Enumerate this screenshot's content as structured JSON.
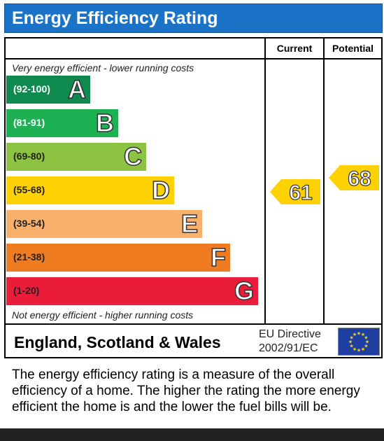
{
  "header": {
    "title": "Energy Efficiency Rating",
    "color": "#1a73c6"
  },
  "columns": {
    "current": "Current",
    "potential": "Potential"
  },
  "notes": {
    "top": "Very energy efficient - lower running costs",
    "bottom": "Not energy efficient - higher running costs"
  },
  "chart_data": {
    "type": "bar",
    "bands": [
      {
        "letter": "A",
        "range": "(92-100)",
        "color": "#0f8a4f",
        "text_color": "#ffffff"
      },
      {
        "letter": "B",
        "range": "(81-91)",
        "color": "#1db154",
        "text_color": "#ffffff"
      },
      {
        "letter": "C",
        "range": "(69-80)",
        "color": "#8cc341",
        "text_color": "#222222"
      },
      {
        "letter": "D",
        "range": "(55-68)",
        "color": "#fed102",
        "text_color": "#222222"
      },
      {
        "letter": "E",
        "range": "(39-54)",
        "color": "#f8b06b",
        "text_color": "#222222"
      },
      {
        "letter": "F",
        "range": "(21-38)",
        "color": "#f07c22",
        "text_color": "#222222"
      },
      {
        "letter": "G",
        "range": "(1-20)",
        "color": "#ea1c3a",
        "text_color": "#222222"
      }
    ],
    "current": {
      "value": 61,
      "label": "61",
      "color": "#fed102"
    },
    "potential": {
      "value": 68,
      "label": "68",
      "color": "#fed102"
    }
  },
  "footer": {
    "region": "England, Scotland & Wales",
    "directive_line1": "EU Directive",
    "directive_line2": "2002/91/EC",
    "flag_icon": "eu-flag-icon"
  },
  "description": "The energy efficiency rating is a measure of the overall efficiency of a home. The higher the rating the more energy efficient the home is and the lower the fuel bills will be."
}
